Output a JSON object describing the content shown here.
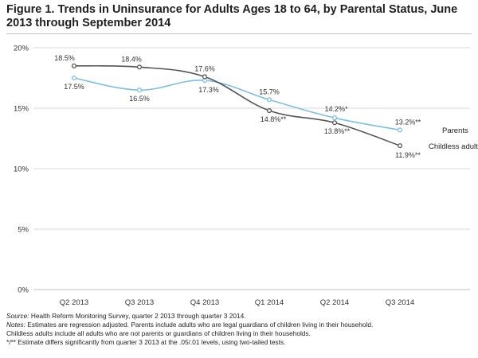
{
  "title": "Figure 1. Trends in Uninsurance for Adults Ages 18 to 64, by Parental Status, June 2013 through September 2014",
  "colors": {
    "parents": "#7bbfe6",
    "childless": "#555555",
    "grid": "#d9d9d9"
  },
  "chart_data": {
    "type": "line",
    "categories": [
      "Q2 2013",
      "Q3 2013",
      "Q4 2013",
      "Q1 2014",
      "Q2 2014",
      "Q3 2014"
    ],
    "ylim": [
      0,
      20
    ],
    "yticks": [
      "0%",
      "5%",
      "10%",
      "15%",
      "20%"
    ],
    "grid": "horizontal",
    "series": [
      {
        "name": "Parents",
        "key": "parents",
        "values": [
          17.5,
          16.5,
          17.3,
          15.7,
          14.2,
          13.2
        ],
        "labels": [
          "17.5%",
          "16.5%",
          "17.3%",
          "15.7%",
          "14.2%*",
          "13.2%**"
        ]
      },
      {
        "name": "Childless adults",
        "key": "childless",
        "values": [
          18.5,
          18.4,
          17.6,
          14.8,
          13.8,
          11.9
        ],
        "labels": [
          "18.5%",
          "18.4%",
          "17.6%",
          "14.8%**",
          "13.8%**",
          "11.9%**"
        ]
      }
    ]
  },
  "notes": {
    "source_label": "Source:",
    "source_text": " Health Reform Monitoring Survey, quarter 2 2013 through quarter 3 2014.",
    "notes_label": "Notes:",
    "notes_text": "  Estimates are regression adjusted. Parents include adults who are legal guardians of children living in their household.",
    "line3": "Childless adults include all adults who are not parents or guardians of children living in their households.",
    "line4": "*/** Estimate differs significantly from quarter 3 2013 at the .05/.01 levels, using two-tailed tests."
  }
}
